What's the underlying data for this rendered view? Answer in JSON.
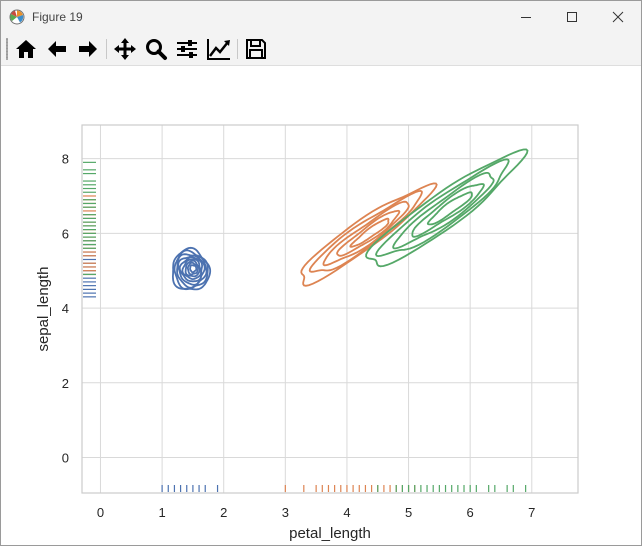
{
  "window": {
    "title": "Figure 19",
    "controls": [
      "minimize",
      "maximize",
      "close"
    ]
  },
  "toolbar": {
    "buttons": [
      {
        "name": "home",
        "icon": "home-icon"
      },
      {
        "name": "back",
        "icon": "arrow-left-icon"
      },
      {
        "name": "forward",
        "icon": "arrow-right-icon"
      },
      {
        "name": "pan",
        "icon": "move-icon"
      },
      {
        "name": "zoom",
        "icon": "magnifier-icon"
      },
      {
        "name": "subplots",
        "icon": "sliders-icon"
      },
      {
        "name": "customize",
        "icon": "line-chart-icon"
      },
      {
        "name": "save",
        "icon": "floppy-disk-icon"
      }
    ]
  },
  "chart_data": {
    "type": "kde-contour",
    "xlabel": "petal_length",
    "ylabel": "sepal_length",
    "xlim": [
      -0.3,
      7.75
    ],
    "ylim": [
      -0.95,
      8.9
    ],
    "xticks": [
      0,
      1,
      2,
      3,
      4,
      5,
      6,
      7
    ],
    "yticks": [
      0,
      2,
      4,
      6,
      8
    ],
    "grid": true,
    "series": [
      {
        "color": "#4c72b0",
        "center": [
          1.46,
          5.01
        ],
        "spread": [
          0.3,
          0.55
        ],
        "levels": 9,
        "rug_x": [
          1.0,
          1.1,
          1.2,
          1.3,
          1.4,
          1.5,
          1.6,
          1.7,
          1.9
        ],
        "rug_y": [
          4.3,
          4.4,
          4.5,
          4.6,
          4.7,
          4.8,
          4.9,
          5.0,
          5.1,
          5.2,
          5.3,
          5.4,
          5.5,
          5.7,
          5.8
        ]
      },
      {
        "color": "#dd8452",
        "center": [
          4.26,
          5.94
        ],
        "spread": [
          1.25,
          0.9
        ],
        "levels": 5,
        "rug_x": [
          3.0,
          3.3,
          3.5,
          3.6,
          3.7,
          3.8,
          3.9,
          4.0,
          4.1,
          4.2,
          4.3,
          4.4,
          4.5,
          4.6,
          4.7,
          4.8,
          4.9,
          5.0,
          5.1
        ],
        "rug_y": [
          4.9,
          5.0,
          5.1,
          5.2,
          5.4,
          5.5,
          5.6,
          5.7,
          5.8,
          5.9,
          6.0,
          6.1,
          6.2,
          6.3,
          6.4,
          6.5,
          6.6,
          6.7,
          6.8,
          6.9,
          7.0
        ]
      },
      {
        "color": "#55a868",
        "center": [
          5.55,
          6.59
        ],
        "spread": [
          1.45,
          1.1
        ],
        "levels": 5,
        "rug_x": [
          4.5,
          4.8,
          4.9,
          5.0,
          5.1,
          5.2,
          5.3,
          5.4,
          5.5,
          5.6,
          5.7,
          5.8,
          5.9,
          6.0,
          6.1,
          6.3,
          6.4,
          6.6,
          6.7,
          6.9
        ],
        "rug_y": [
          4.9,
          5.6,
          5.7,
          5.8,
          5.9,
          6.0,
          6.1,
          6.2,
          6.3,
          6.4,
          6.5,
          6.7,
          6.8,
          6.9,
          7.1,
          7.2,
          7.3,
          7.4,
          7.6,
          7.7,
          7.9
        ]
      }
    ]
  }
}
